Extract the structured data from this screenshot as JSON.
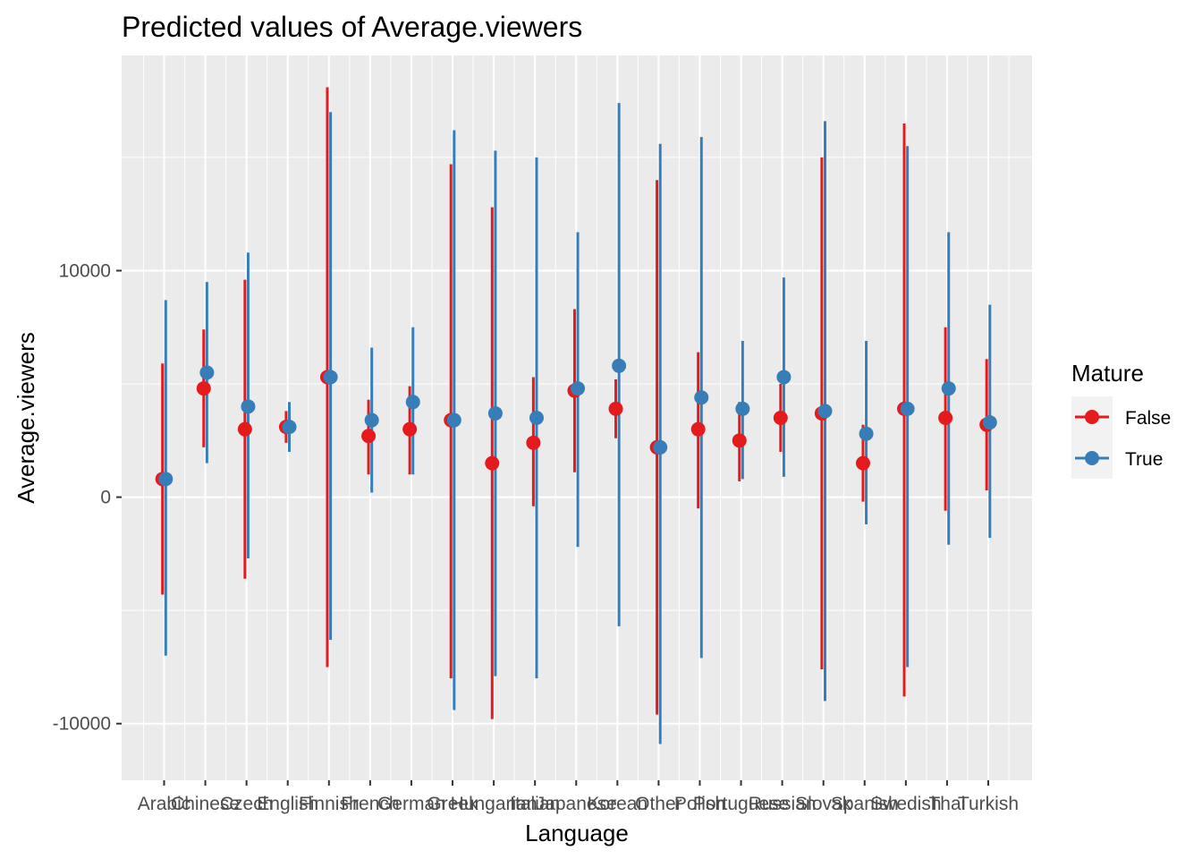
{
  "chart_data": {
    "type": "scatter",
    "title": "Predicted values of Average.viewers",
    "xlabel": "Language",
    "ylabel": "Average.viewers",
    "ylim": [
      -12500,
      19500
    ],
    "yticks": [
      -10000,
      0,
      10000
    ],
    "ytick_labels": [
      "-10000",
      "0",
      "10000"
    ],
    "grid": true,
    "legend_position": "right",
    "categories": [
      "Arabic",
      "Chinese",
      "Czech",
      "English",
      "Finnish",
      "French",
      "German",
      "Greek",
      "Hungarian",
      "Italian",
      "Japanese",
      "Korean",
      "Other",
      "Polish",
      "Portuguese",
      "Russian",
      "Slovak",
      "Spanish",
      "Swedish",
      "Thai",
      "Turkish"
    ],
    "legend": {
      "title": "Mature",
      "entries": [
        "False",
        "True"
      ]
    },
    "series": [
      {
        "name": "False",
        "color": "#e41a1c",
        "values": [
          800,
          4800,
          3000,
          3100,
          5300,
          2700,
          3000,
          3400,
          1500,
          2400,
          4700,
          3900,
          2200,
          3000,
          2500,
          3500,
          3700,
          1500,
          3900,
          3500,
          3200
        ],
        "ci_low": [
          -4300,
          2200,
          -3600,
          2400,
          -7500,
          1000,
          1000,
          -8000,
          -9800,
          -400,
          1100,
          2600,
          -9600,
          -500,
          700,
          2000,
          -7600,
          -200,
          -8800,
          -600,
          300
        ],
        "ci_high": [
          5900,
          7400,
          9600,
          3800,
          18100,
          4300,
          4900,
          14700,
          12800,
          5300,
          8300,
          5200,
          14000,
          6400,
          4200,
          5000,
          15000,
          3200,
          16500,
          7500,
          6100
        ]
      },
      {
        "name": "True",
        "color": "#377eb8",
        "values": [
          800,
          5500,
          4000,
          3100,
          5300,
          3400,
          4200,
          3400,
          3700,
          3500,
          4800,
          5800,
          2200,
          4400,
          3900,
          5300,
          3800,
          2800,
          3900,
          4800,
          3300
        ],
        "ci_low": [
          -7000,
          1500,
          -2700,
          2000,
          -6300,
          200,
          1000,
          -9400,
          -7900,
          -8000,
          -2200,
          -5700,
          -10900,
          -7100,
          800,
          900,
          -9000,
          -1200,
          -7500,
          -2100,
          -1800
        ],
        "ci_high": [
          8700,
          9500,
          10800,
          4200,
          17000,
          6600,
          7500,
          16200,
          15300,
          15000,
          11700,
          17400,
          15600,
          15900,
          6900,
          9700,
          16600,
          6900,
          15500,
          11700,
          8500
        ]
      }
    ]
  }
}
